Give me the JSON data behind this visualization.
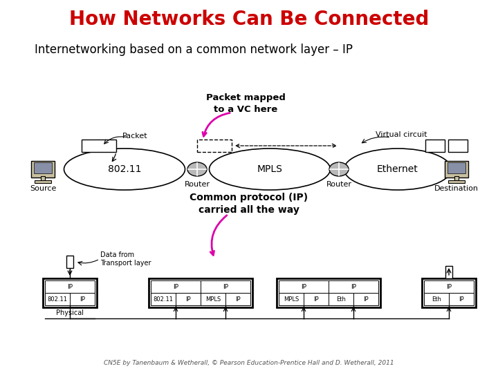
{
  "title": "How Networks Can Be Connected",
  "subtitle": "Internetworking based on a common network layer – IP",
  "title_color": "#cc0000",
  "subtitle_color": "#000000",
  "background_color": "#ffffff",
  "caption": "CN5E by Tanenbaum & Wetherall, © Pearson Education-Prentice Hall and D. Wetherall, 2011",
  "annotation1": "Packet mapped\nto a VC here",
  "annotation2": "Common protocol (IP)\ncarried all the way",
  "packet_label": "Packet",
  "vc_label": "Virtual circuit",
  "data_from_label": "Data from\nTransport layer"
}
